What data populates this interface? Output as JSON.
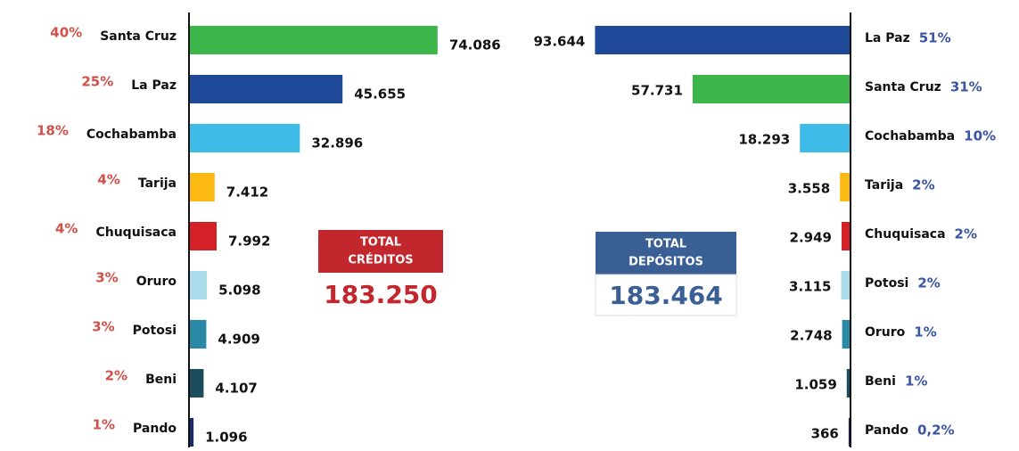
{
  "chart_data": [
    {
      "type": "bar",
      "categories": [
        "Santa Cruz",
        "La Paz",
        "Cochabamba",
        "Tarija",
        "Chuquisaca",
        "Oruro",
        "Potosi",
        "Beni",
        "Pando"
      ],
      "values": [
        74086,
        45655,
        32896,
        7412,
        7992,
        5098,
        4909,
        4107,
        1096
      ],
      "value_labels": [
        "74.086",
        "45.655",
        "32.896",
        "7.412",
        "7.992",
        "5.098",
        "4.909",
        "4.107",
        "1.096"
      ],
      "share_labels": [
        "40%",
        "25%",
        "18%",
        "4%",
        "4%",
        "3%",
        "3%",
        "2%",
        "1%"
      ],
      "colors": [
        "#3cb54a",
        "#1f4a9a",
        "#3ebbe6",
        "#fdb913",
        "#d42027",
        "#a9dbea",
        "#2a8aa6",
        "#1b4d5c",
        "#1c2a6b"
      ],
      "xlim": [
        0,
        80000
      ],
      "total_title": [
        "TOTAL",
        "CRÉDITOS"
      ],
      "total": 183250,
      "total_label": "183.250",
      "total_color": "#c1272d"
    },
    {
      "type": "bar",
      "categories": [
        "La Paz",
        "Santa Cruz",
        "Cochabamba",
        "Tarija",
        "Chuquisaca",
        "Potosi",
        "Oruro",
        "Beni",
        "Pando"
      ],
      "values": [
        93644,
        57731,
        18293,
        3558,
        2949,
        3115,
        2748,
        1059,
        366
      ],
      "value_labels": [
        "93.644",
        "57.731",
        "18.293",
        "3.558",
        "2.949",
        "3.115",
        "2.748",
        "1.059",
        "366"
      ],
      "share_labels": [
        "51%",
        "31%",
        "10%",
        "2%",
        "2%",
        "2%",
        "1%",
        "1%",
        "0,2%"
      ],
      "colors": [
        "#1f4a9a",
        "#3cb54a",
        "#3ebbe6",
        "#fdb913",
        "#d42027",
        "#a9dbea",
        "#2a8aa6",
        "#1b4d5c",
        "#1c2a6b"
      ],
      "xlim": [
        0,
        100000
      ],
      "total_title": [
        "TOTAL",
        "DEPÓSITOS"
      ],
      "total": 183464,
      "total_label": "183.464",
      "total_color": "#3a5f95"
    }
  ]
}
